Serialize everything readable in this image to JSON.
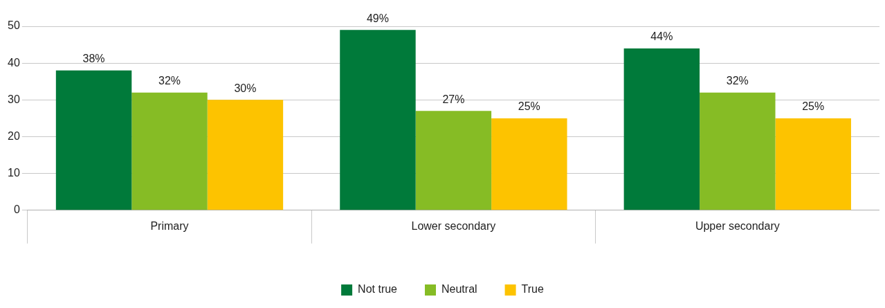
{
  "chart_data": {
    "type": "bar",
    "categories": [
      "Primary",
      "Lower secondary",
      "Upper secondary"
    ],
    "series": [
      {
        "name": "Not true",
        "color": "#007a3a",
        "values": [
          38,
          49,
          44
        ],
        "value_labels": [
          "38%",
          "49%",
          "44%"
        ]
      },
      {
        "name": "Neutral",
        "color": "#86bc25",
        "values": [
          32,
          27,
          32
        ],
        "value_labels": [
          "32%",
          "27%",
          "32%"
        ]
      },
      {
        "name": "True",
        "color": "#fdc300",
        "values": [
          30,
          25,
          25
        ],
        "value_labels": [
          "30%",
          "25%",
          "25%"
        ]
      }
    ],
    "ylim": [
      0,
      50
    ],
    "yticks": [
      0,
      10,
      20,
      30,
      40,
      50
    ],
    "grid": "y",
    "legend": "bottom"
  }
}
